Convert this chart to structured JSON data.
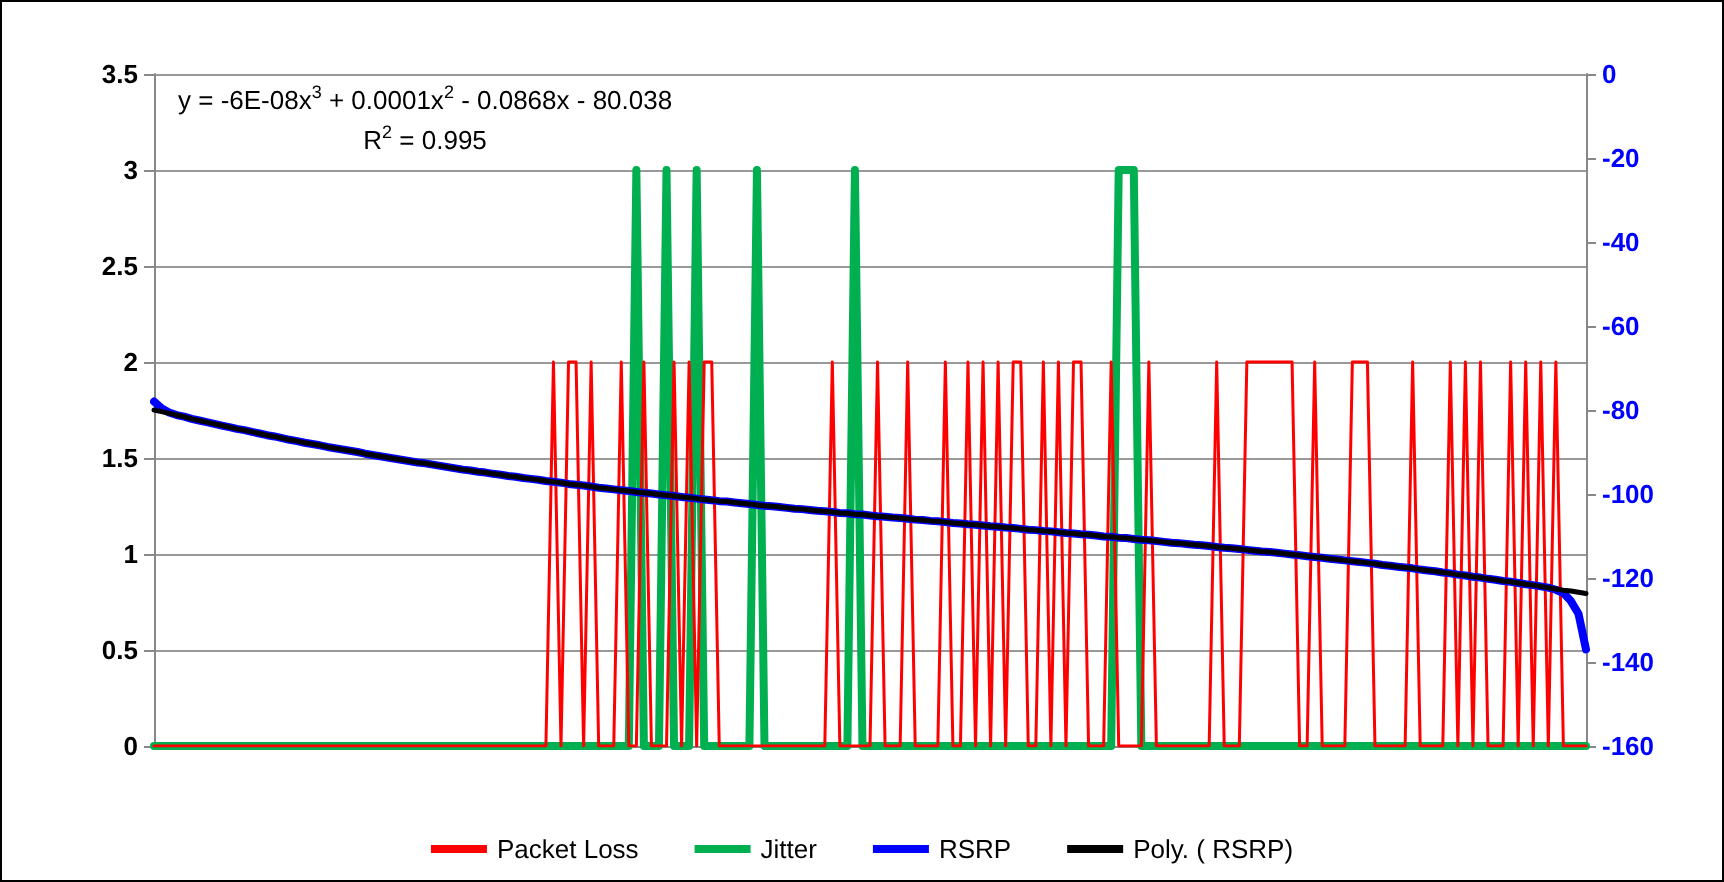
{
  "chart_data": {
    "type": "line",
    "categories": [
      null,
      null,
      null,
      null,
      null,
      null,
      null,
      null,
      null,
      null,
      null,
      null,
      null,
      null,
      null,
      null,
      null,
      null,
      null,
      null,
      null,
      null,
      null,
      null,
      null,
      null,
      null,
      null,
      null,
      null,
      null,
      null,
      null,
      null,
      null,
      null,
      null,
      null,
      null,
      null,
      null,
      null,
      null,
      null,
      null,
      null,
      null,
      null,
      null,
      null,
      null,
      null,
      null,
      null,
      null,
      null,
      null,
      null,
      null,
      null,
      null,
      null,
      null,
      null,
      null,
      null,
      null,
      null,
      null,
      null,
      null,
      null,
      null,
      null,
      null,
      null,
      null,
      null,
      null,
      null,
      null,
      null,
      null,
      null,
      null,
      null,
      null,
      null,
      null,
      null,
      null,
      null,
      null,
      null,
      null,
      null,
      null,
      null,
      null,
      null,
      null,
      null,
      null,
      null,
      null,
      null,
      null,
      null,
      null,
      null,
      null,
      null,
      null,
      null,
      null,
      null,
      null,
      null,
      null,
      null,
      null,
      null,
      null,
      null,
      null,
      null,
      null,
      null,
      null,
      null,
      null,
      null,
      null,
      null,
      null,
      null,
      null,
      null,
      null,
      null,
      null,
      null,
      null,
      null,
      null,
      null,
      null,
      null,
      null,
      null,
      null,
      null,
      null,
      null,
      null,
      null,
      null,
      null,
      null,
      null,
      null,
      null,
      null,
      null,
      null,
      null,
      null,
      null,
      null,
      null,
      null,
      null,
      null,
      null,
      null,
      null,
      null,
      null,
      null,
      null,
      null,
      null,
      null,
      null,
      null,
      null,
      null,
      null,
      null,
      null,
      null
    ],
    "series": [
      {
        "name": "Packet Loss",
        "color": "#ff0000",
        "values": [
          0,
          0,
          0,
          0,
          0,
          0,
          0,
          0,
          0,
          0,
          0,
          0,
          0,
          0,
          0,
          0,
          0,
          0,
          0,
          0,
          0,
          0,
          0,
          0,
          0,
          0,
          0,
          0,
          0,
          0,
          0,
          0,
          0,
          0,
          0,
          0,
          0,
          0,
          0,
          0,
          0,
          0,
          0,
          0,
          0,
          0,
          0,
          0,
          0,
          0,
          0,
          0,
          0,
          2,
          0,
          2,
          2,
          0,
          2,
          0,
          0,
          0,
          2,
          0,
          0,
          2,
          0,
          0,
          0,
          2,
          0,
          2,
          0,
          2,
          2,
          0,
          0,
          0,
          0,
          0,
          0,
          0,
          0,
          0,
          0,
          0,
          0,
          0,
          0,
          0,
          2,
          0,
          0,
          0,
          0,
          0,
          2,
          0,
          0,
          0,
          2,
          0,
          0,
          0,
          0,
          2,
          0,
          0,
          2,
          0,
          2,
          0,
          2,
          0,
          2,
          2,
          0,
          0,
          2,
          0,
          2,
          0,
          2,
          2,
          0,
          0,
          0,
          2,
          0,
          0,
          0,
          0,
          2,
          0,
          0,
          0,
          0,
          0,
          0,
          0,
          0,
          2,
          0,
          0,
          0,
          2,
          2,
          2,
          2,
          2,
          2,
          2,
          0,
          0,
          2,
          0,
          0,
          0,
          0,
          2,
          2,
          2,
          0,
          0,
          0,
          0,
          0,
          2,
          0,
          0,
          0,
          0,
          2,
          0,
          2,
          0,
          2,
          0,
          0,
          0,
          2,
          0,
          2,
          0,
          2,
          0,
          2,
          0,
          0,
          0,
          0
        ]
      },
      {
        "name": "Jitter",
        "color": "#00b050",
        "values": [
          0,
          0,
          0,
          0,
          0,
          0,
          0,
          0,
          0,
          0,
          0,
          0,
          0,
          0,
          0,
          0,
          0,
          0,
          0,
          0,
          0,
          0,
          0,
          0,
          0,
          0,
          0,
          0,
          0,
          0,
          0,
          0,
          0,
          0,
          0,
          0,
          0,
          0,
          0,
          0,
          0,
          0,
          0,
          0,
          0,
          0,
          0,
          0,
          0,
          0,
          0,
          0,
          0,
          0,
          0,
          0,
          0,
          0,
          0,
          0,
          0,
          0,
          0,
          0,
          3,
          0,
          0,
          0,
          3,
          0,
          0,
          0,
          3,
          0,
          0,
          0,
          0,
          0,
          0,
          0,
          3,
          0,
          0,
          0,
          0,
          0,
          0,
          0,
          0,
          0,
          0,
          0,
          0,
          3,
          0,
          0,
          0,
          0,
          0,
          0,
          0,
          0,
          0,
          0,
          0,
          0,
          0,
          0,
          0,
          0,
          0,
          0,
          0,
          0,
          0,
          0,
          0,
          0,
          0,
          0,
          0,
          0,
          0,
          0,
          0,
          0,
          0,
          0,
          3,
          3,
          3,
          0,
          0,
          0,
          0,
          0,
          0,
          0,
          0,
          0,
          0,
          0,
          0,
          0,
          0,
          0,
          0,
          0,
          0,
          0,
          0,
          0,
          0,
          0,
          0,
          0,
          0,
          0,
          0,
          0,
          0,
          0,
          0,
          0,
          0,
          0,
          0,
          0,
          0,
          0,
          0,
          0,
          0,
          0,
          0,
          0,
          0,
          0,
          0,
          0,
          0,
          0,
          0,
          0,
          0,
          0,
          0,
          0,
          0,
          0,
          0
        ]
      },
      {
        "name": "RSRP",
        "color": "#0000ff",
        "axis": "y2",
        "values": [
          -78.0,
          -79.6,
          -80.6,
          -81.2,
          -81.6,
          -82.1,
          -82.5,
          -82.9,
          -83.3,
          -83.7,
          -84.1,
          -84.5,
          -84.8,
          -85.2,
          -85.6,
          -86.0,
          -86.3,
          -86.7,
          -87.1,
          -87.4,
          -87.8,
          -88.1,
          -88.4,
          -88.8,
          -89.1,
          -89.4,
          -89.7,
          -90.0,
          -90.4,
          -90.7,
          -91.0,
          -91.3,
          -91.6,
          -91.9,
          -92.2,
          -92.5,
          -92.7,
          -93.0,
          -93.3,
          -93.6,
          -93.9,
          -94.2,
          -94.4,
          -94.7,
          -94.9,
          -95.2,
          -95.4,
          -95.7,
          -95.9,
          -96.2,
          -96.4,
          -96.6,
          -96.9,
          -97.1,
          -97.3,
          -97.6,
          -97.8,
          -98.0,
          -98.2,
          -98.5,
          -98.7,
          -98.9,
          -99.1,
          -99.3,
          -99.5,
          -99.7,
          -99.9,
          -100.1,
          -100.3,
          -100.5,
          -100.7,
          -100.9,
          -101.1,
          -101.3,
          -101.5,
          -101.7,
          -101.8,
          -102.0,
          -102.2,
          -102.4,
          -102.6,
          -102.8,
          -102.9,
          -103.1,
          -103.3,
          -103.5,
          -103.6,
          -103.8,
          -104.0,
          -104.1,
          -104.3,
          -104.5,
          -104.6,
          -104.8,
          -104.9,
          -105.1,
          -105.3,
          -105.4,
          -105.6,
          -105.7,
          -105.9,
          -106.1,
          -106.2,
          -106.4,
          -106.5,
          -106.7,
          -106.9,
          -107.0,
          -107.2,
          -107.3,
          -107.5,
          -107.7,
          -107.8,
          -108.0,
          -108.1,
          -108.3,
          -108.5,
          -108.6,
          -108.8,
          -108.9,
          -109.1,
          -109.3,
          -109.4,
          -109.6,
          -109.7,
          -109.9,
          -110.1,
          -110.2,
          -110.4,
          -110.5,
          -110.7,
          -110.9,
          -111.0,
          -111.2,
          -111.4,
          -111.6,
          -111.7,
          -111.9,
          -112.1,
          -112.2,
          -112.4,
          -112.6,
          -112.8,
          -112.9,
          -113.1,
          -113.3,
          -113.5,
          -113.7,
          -113.8,
          -114.0,
          -114.2,
          -114.4,
          -114.6,
          -114.8,
          -115.0,
          -115.2,
          -115.4,
          -115.6,
          -115.8,
          -116.0,
          -116.2,
          -116.4,
          -116.6,
          -116.9,
          -117.1,
          -117.3,
          -117.5,
          -117.7,
          -118.0,
          -118.2,
          -118.4,
          -118.7,
          -118.9,
          -119.2,
          -119.4,
          -119.7,
          -119.9,
          -120.2,
          -120.4,
          -120.7,
          -120.9,
          -121.2,
          -121.5,
          -121.7,
          -122.0,
          -122.3,
          -122.8,
          -123.6,
          -125.5,
          -128.5,
          -137.0
        ]
      },
      {
        "name": "Poly. ( RSRP)",
        "color": "#000000",
        "axis": "y2",
        "values": [
          -80.0,
          -80.4,
          -80.8,
          -81.2,
          -81.6,
          -82.1,
          -82.5,
          -82.9,
          -83.3,
          -83.7,
          -84.1,
          -84.5,
          -84.8,
          -85.2,
          -85.6,
          -86.0,
          -86.3,
          -86.7,
          -87.1,
          -87.4,
          -87.8,
          -88.1,
          -88.4,
          -88.8,
          -89.1,
          -89.4,
          -89.7,
          -90.0,
          -90.4,
          -90.7,
          -91.0,
          -91.3,
          -91.6,
          -91.9,
          -92.2,
          -92.5,
          -92.7,
          -93.0,
          -93.3,
          -93.6,
          -93.9,
          -94.2,
          -94.4,
          -94.7,
          -94.9,
          -95.2,
          -95.4,
          -95.7,
          -95.9,
          -96.2,
          -96.4,
          -96.6,
          -96.9,
          -97.1,
          -97.3,
          -97.6,
          -97.8,
          -98.0,
          -98.2,
          -98.5,
          -98.7,
          -98.9,
          -99.1,
          -99.3,
          -99.5,
          -99.7,
          -99.9,
          -100.1,
          -100.3,
          -100.5,
          -100.7,
          -100.9,
          -101.1,
          -101.3,
          -101.5,
          -101.7,
          -101.8,
          -102.0,
          -102.2,
          -102.4,
          -102.6,
          -102.8,
          -102.9,
          -103.1,
          -103.3,
          -103.5,
          -103.6,
          -103.8,
          -104.0,
          -104.1,
          -104.3,
          -104.5,
          -104.6,
          -104.8,
          -104.9,
          -105.1,
          -105.3,
          -105.4,
          -105.6,
          -105.7,
          -105.9,
          -106.1,
          -106.2,
          -106.4,
          -106.5,
          -106.7,
          -106.9,
          -107.0,
          -107.2,
          -107.3,
          -107.5,
          -107.7,
          -107.8,
          -108.0,
          -108.1,
          -108.3,
          -108.5,
          -108.6,
          -108.8,
          -108.9,
          -109.1,
          -109.3,
          -109.4,
          -109.6,
          -109.7,
          -109.9,
          -110.1,
          -110.2,
          -110.4,
          -110.5,
          -110.7,
          -110.9,
          -111.0,
          -111.2,
          -111.4,
          -111.6,
          -111.7,
          -111.9,
          -112.1,
          -112.2,
          -112.4,
          -112.6,
          -112.8,
          -112.9,
          -113.1,
          -113.3,
          -113.5,
          -113.7,
          -113.8,
          -114.0,
          -114.2,
          -114.4,
          -114.6,
          -114.8,
          -115.0,
          -115.2,
          -115.4,
          -115.6,
          -115.8,
          -116.0,
          -116.2,
          -116.4,
          -116.6,
          -116.9,
          -117.1,
          -117.3,
          -117.5,
          -117.7,
          -118.0,
          -118.2,
          -118.4,
          -118.7,
          -118.9,
          -119.2,
          -119.4,
          -119.7,
          -119.9,
          -120.2,
          -120.4,
          -120.7,
          -120.9,
          -121.2,
          -121.5,
          -121.7,
          -122.0,
          -122.3,
          -122.6,
          -122.9,
          -123.1,
          -123.4,
          -123.7
        ]
      }
    ],
    "ylim": [
      0,
      3.5
    ],
    "yticks": [
      0,
      0.5,
      1,
      1.5,
      2,
      2.5,
      3,
      3.5
    ],
    "y2lim": [
      -160,
      0
    ],
    "y2ticks": [
      -160,
      -140,
      -120,
      -100,
      -80,
      -60,
      -40,
      -20,
      0
    ],
    "annotations": [
      "y = -6E-08x$^{3}$ + 0.0001x$^{2}$ - 0.0868x - 80.038",
      "R$^{2}$ = 0.995"
    ],
    "grid": "y",
    "legend": "bottom",
    "marker": "none",
    "line_style": "solid"
  }
}
